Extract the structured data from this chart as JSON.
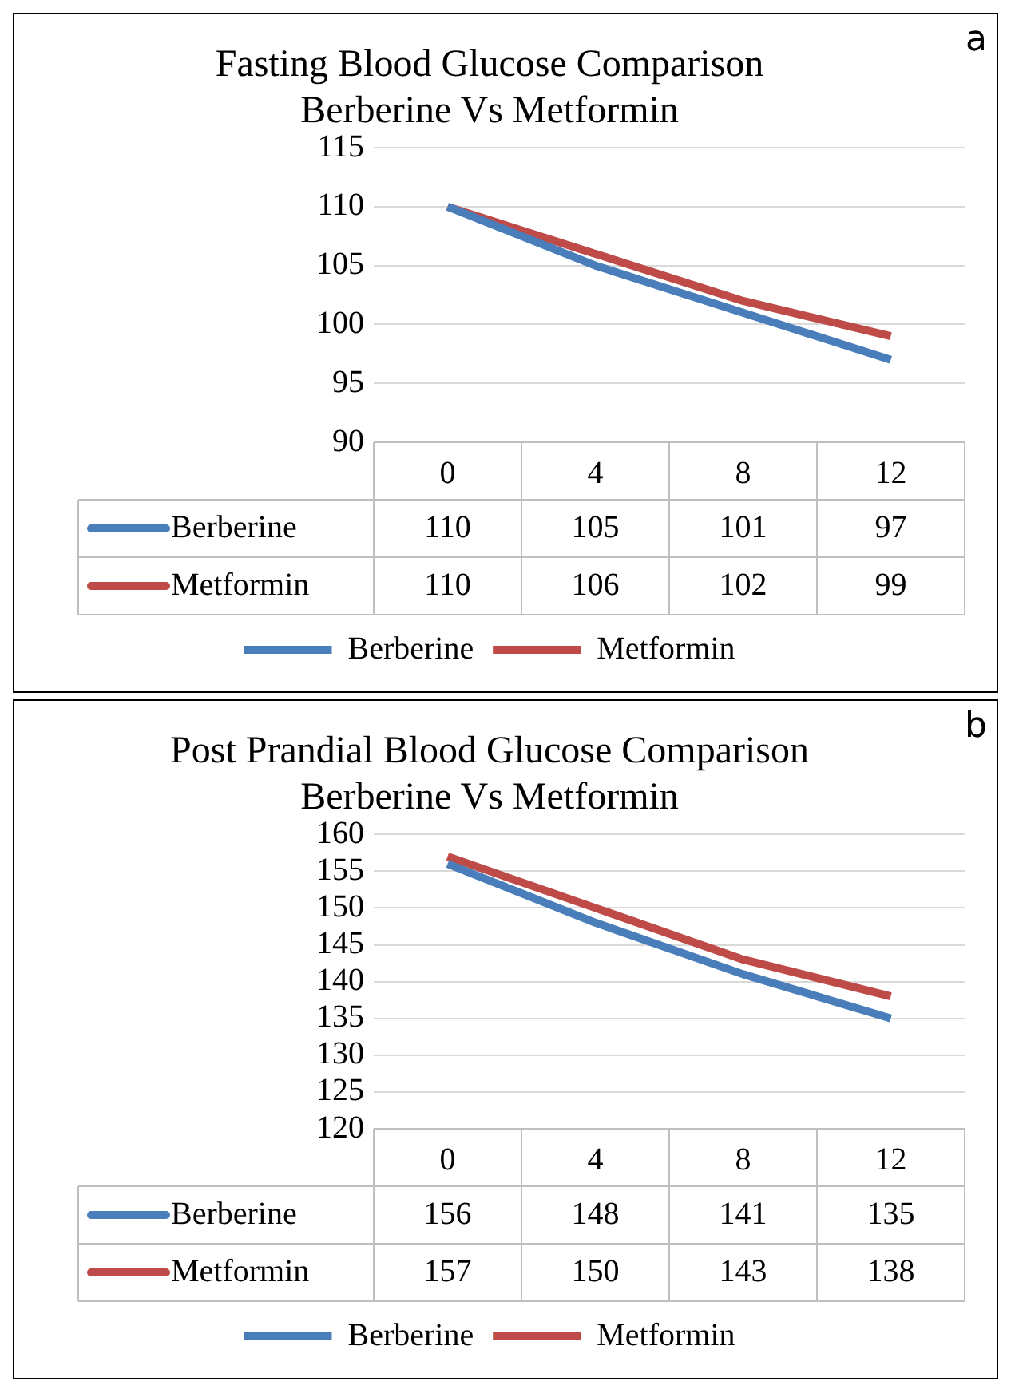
{
  "chart_data": [
    {
      "type": "line",
      "title": "Fasting Blood Glucose Comparison",
      "subtitle": "Berberine Vs Metformin",
      "categories": [
        "0",
        "4",
        "8",
        "12"
      ],
      "series": [
        {
          "name": "Berberine",
          "color": "#4a7ebb",
          "values": [
            110,
            105,
            101,
            97
          ]
        },
        {
          "name": "Metformin",
          "color": "#be4b48",
          "values": [
            110,
            106,
            102,
            99
          ]
        }
      ],
      "ylim": [
        90,
        115
      ],
      "yticks": [
        90,
        95,
        100,
        105,
        110,
        115
      ],
      "grid": "y",
      "legend": "bottom",
      "data_labels": true,
      "marker": "none",
      "line_style": "solid",
      "annotations": [
        "a"
      ]
    },
    {
      "type": "line",
      "title": "Post Prandial Blood Glucose Comparison",
      "subtitle": "Berberine Vs Metformin",
      "categories": [
        "0",
        "4",
        "8",
        "12"
      ],
      "series": [
        {
          "name": "Berberine",
          "color": "#4a7ebb",
          "values": [
            156,
            148,
            141,
            135
          ]
        },
        {
          "name": "Metformin",
          "color": "#be4b48",
          "values": [
            157,
            150,
            143,
            138
          ]
        }
      ],
      "ylim": [
        120,
        160
      ],
      "yticks": [
        120,
        125,
        130,
        135,
        140,
        145,
        150,
        155,
        160
      ],
      "grid": "y",
      "legend": "bottom",
      "data_labels": true,
      "marker": "none",
      "line_style": "solid",
      "annotations": [
        "b"
      ]
    }
  ]
}
